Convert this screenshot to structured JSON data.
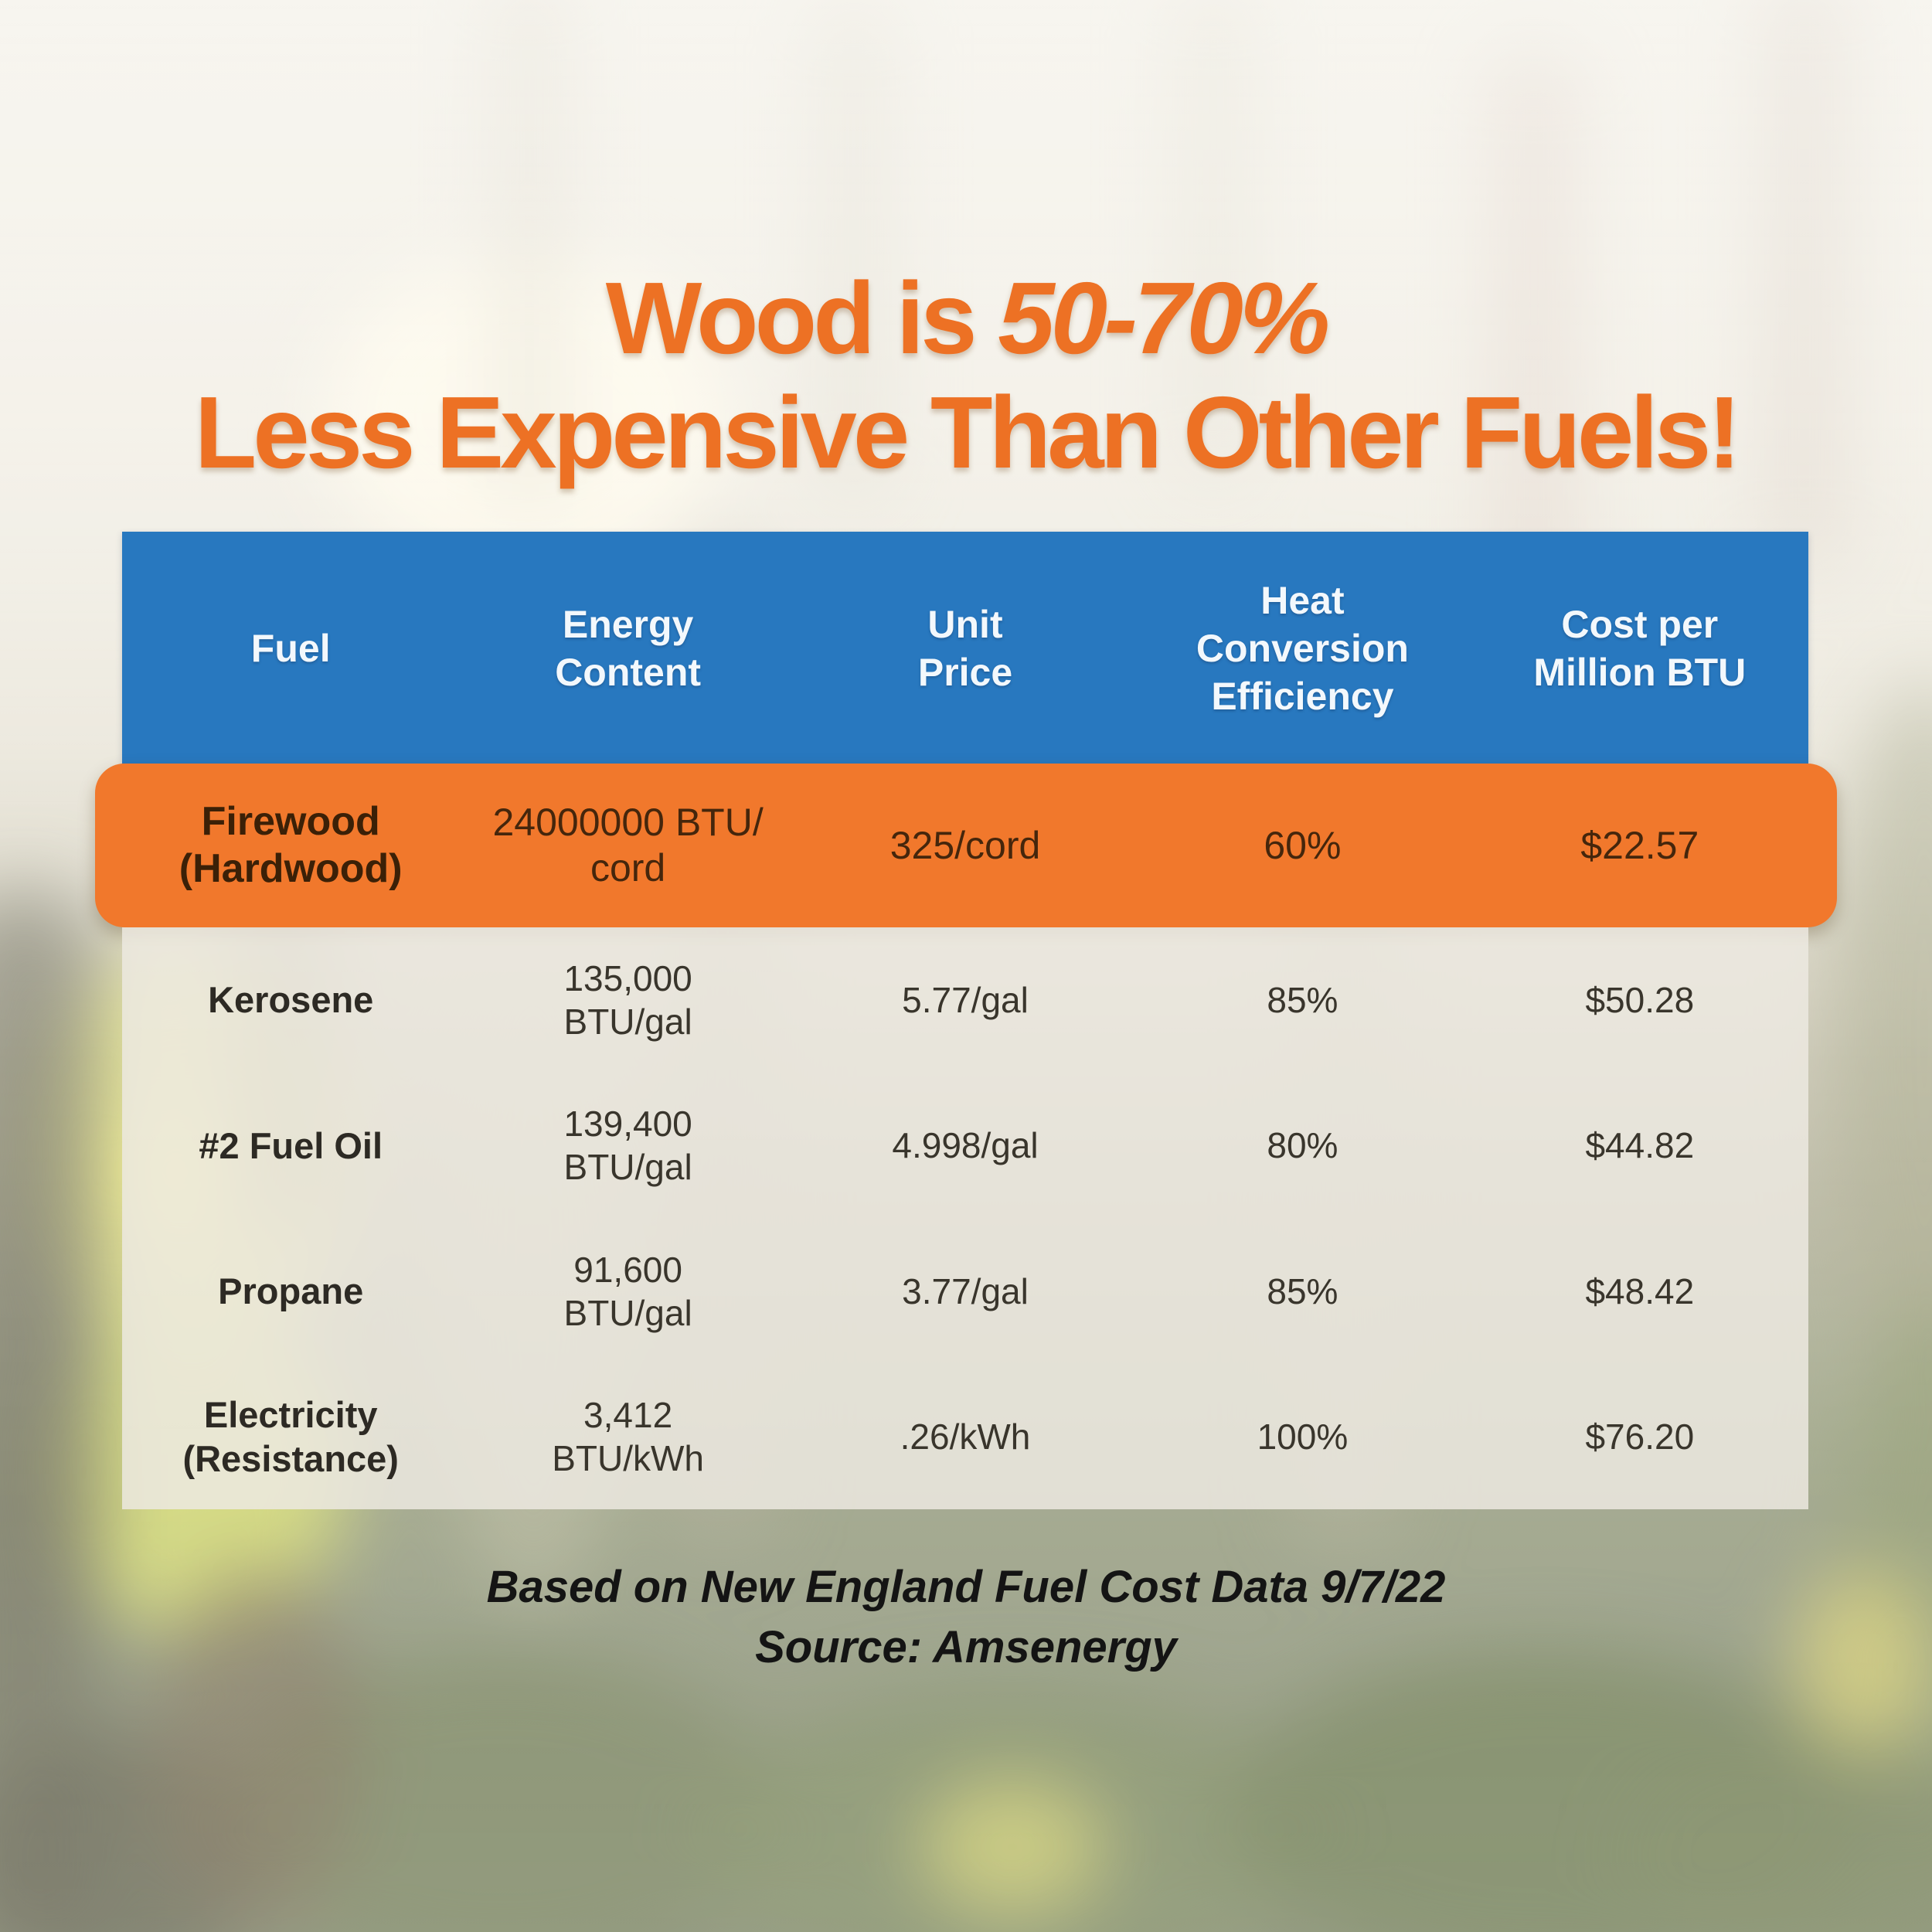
{
  "title": {
    "line1_regular": "Wood is ",
    "line1_italic": "50-70%",
    "line2": "Less Expensive Than Other Fuels!"
  },
  "table": {
    "headers": [
      "Fuel",
      "Energy\nContent",
      "Unit\nPrice",
      "Heat\nConversion\nEfficiency",
      "Cost per\nMillion BTU"
    ],
    "highlight_row": {
      "fuel": "Firewood\n(Hardwood)",
      "energy_content": "24000000 BTU/\ncord",
      "unit_price": "325/cord",
      "efficiency": "60%",
      "cost_per_million_btu": "$22.57"
    },
    "rows": [
      {
        "fuel": "Kerosene",
        "energy_content": "135,000\nBTU/gal",
        "unit_price": "5.77/gal",
        "efficiency": "85%",
        "cost_per_million_btu": "$50.28"
      },
      {
        "fuel": "#2 Fuel Oil",
        "energy_content": "139,400\nBTU/gal",
        "unit_price": "4.998/gal",
        "efficiency": "80%",
        "cost_per_million_btu": "$44.82"
      },
      {
        "fuel": "Propane",
        "energy_content": "91,600\nBTU/gal",
        "unit_price": "3.77/gal",
        "efficiency": "85%",
        "cost_per_million_btu": "$48.42"
      },
      {
        "fuel": "Electricity\n(Resistance)",
        "energy_content": "3,412\nBTU/kWh",
        "unit_price": ".26/kWh",
        "efficiency": "100%",
        "cost_per_million_btu": "$76.20"
      }
    ]
  },
  "footnote": {
    "line1": "Based on New England Fuel Cost Data 9/7/22",
    "line2": "Source: Amsenergy"
  },
  "colors": {
    "title_orange": "#ED7124",
    "header_blue": "#2878BF",
    "highlight_orange": "#F1782C",
    "highlight_text": "#3B2007",
    "body_panel": "rgba(236,233,225,0.85)",
    "footnote_text": "#141414"
  },
  "chart_data": {
    "type": "table",
    "title": "Wood is 50-70% Less Expensive Than Other Fuels!",
    "columns": [
      "Fuel",
      "Energy Content",
      "Unit Price",
      "Heat Conversion Efficiency",
      "Cost per Million BTU"
    ],
    "rows": [
      [
        "Firewood (Hardwood)",
        "24000000 BTU/cord",
        "325/cord",
        "60%",
        "$22.57"
      ],
      [
        "Kerosene",
        "135,000 BTU/gal",
        "5.77/gal",
        "85%",
        "$50.28"
      ],
      [
        "#2 Fuel Oil",
        "139,400 BTU/gal",
        "4.998/gal",
        "80%",
        "$44.82"
      ],
      [
        "Propane",
        "91,600 BTU/gal",
        "3.77/gal",
        "85%",
        "$48.42"
      ],
      [
        "Electricity (Resistance)",
        "3,412 BTU/kWh",
        ".26/kWh",
        "100%",
        "$76.20"
      ]
    ],
    "highlighted_row": "Firewood (Hardwood)",
    "cost_per_million_btu_values": [
      22.57,
      50.28,
      44.82,
      48.42,
      76.2
    ],
    "efficiency_percent_values": [
      60,
      85,
      80,
      85,
      100
    ],
    "note": "Based on New England Fuel Cost Data 9/7/22",
    "source": "Amsenergy"
  }
}
